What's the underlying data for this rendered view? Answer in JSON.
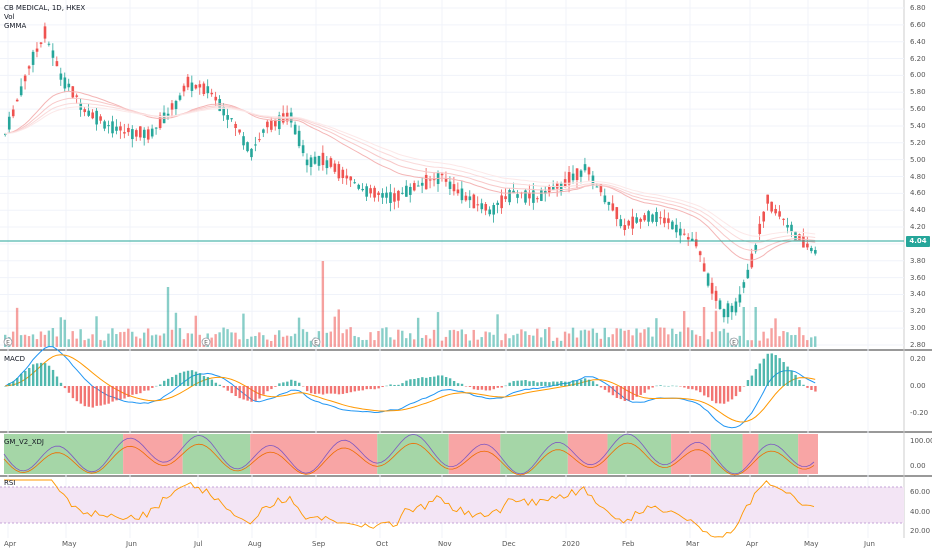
{
  "header": {
    "symbol_line": "CB MEDICAL, 1D, HKEX",
    "vol_label": "Vol",
    "gmma_label": "GMMA"
  },
  "panes": {
    "macd_label": "MACD",
    "gm_label": "GM_V2_XDJ",
    "rsi_label": "RSI"
  },
  "price_axis": [
    "6.80",
    "6.60",
    "6.40",
    "6.20",
    "6.00",
    "5.80",
    "5.60",
    "5.40",
    "5.20",
    "5.00",
    "4.80",
    "4.60",
    "4.40",
    "4.20",
    "4.00",
    "3.80",
    "3.60",
    "3.40",
    "3.20",
    "3.00",
    "2.80"
  ],
  "current_price": "4.04",
  "macd_axis": [
    "0.20",
    "0.00",
    "-0.20"
  ],
  "gm_axis": [
    "100.00",
    "0.00"
  ],
  "rsi_axis": [
    "60.00",
    "40.00",
    "20.00"
  ],
  "time_axis": [
    "Apr",
    "May",
    "Jun",
    "Jul",
    "Aug",
    "Sep",
    "Oct",
    "Nov",
    "Dec",
    "2020",
    "Feb",
    "Mar",
    "Apr",
    "May",
    "Jun"
  ],
  "event_marker": "E",
  "colors": {
    "up": "#26a69a",
    "down": "#ef5350",
    "macd_line": "#2196f3",
    "signal_line": "#ff9800",
    "rsi_line": "#ff9800",
    "gm_green": "#a5d6a7",
    "gm_red": "#f8a5a5",
    "rsi_band": "#f3e5f5"
  },
  "chart_data": {
    "type": "candlestick",
    "title": "CB MEDICAL, 1D, HKEX",
    "ylim": [
      2.8,
      6.8
    ],
    "x": [
      "Apr",
      "May",
      "Jun",
      "Jul",
      "Aug",
      "Sep",
      "Oct",
      "Nov",
      "Dec",
      "2020",
      "Feb",
      "Mar",
      "Apr",
      "May"
    ],
    "close": [
      5.4,
      5.6,
      5.3,
      5.9,
      5.5,
      5.6,
      4.6,
      4.8,
      4.4,
      4.7,
      4.3,
      3.1,
      4.5,
      4.04
    ],
    "current": 4.04
  }
}
